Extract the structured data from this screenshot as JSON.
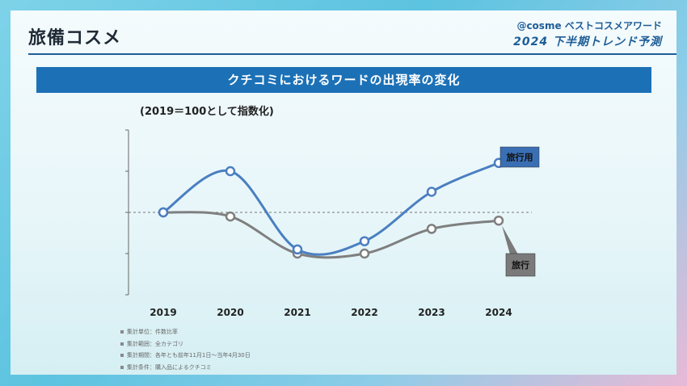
{
  "header": {
    "title": "旅備コスメ",
    "brand": "@cosme ベストコスメアワード",
    "subtitle": "2024 下半期トレンド予測"
  },
  "banner": "クチコミにおけるワードの出現率の変化",
  "chart_caption": "(2019＝100として指数化)",
  "chart_data": {
    "type": "line",
    "x": [
      "2019",
      "2020",
      "2021",
      "2022",
      "2023",
      "2024"
    ],
    "series": [
      {
        "name": "旅行用",
        "values": [
          100,
          110,
          91,
          93,
          105,
          112
        ],
        "color": "#4a7fc1",
        "label_bg": "#3a6fb4"
      },
      {
        "name": "旅行",
        "values": [
          100,
          99,
          90,
          90,
          96,
          98
        ],
        "color": "#7f7f7f",
        "label_bg": "#7a7a7a"
      }
    ],
    "baseline": 100,
    "ylim": [
      80,
      120
    ],
    "title": "クチコミにおけるワードの出現率の変化",
    "xlabel": "",
    "ylabel": ""
  },
  "notes": [
    "集計単位：件数比率",
    "集計範囲：全カテゴリ",
    "集計期間：各年とも前年11月1日〜当年4月30日",
    "集計条件：購入品によるクチコミ"
  ]
}
